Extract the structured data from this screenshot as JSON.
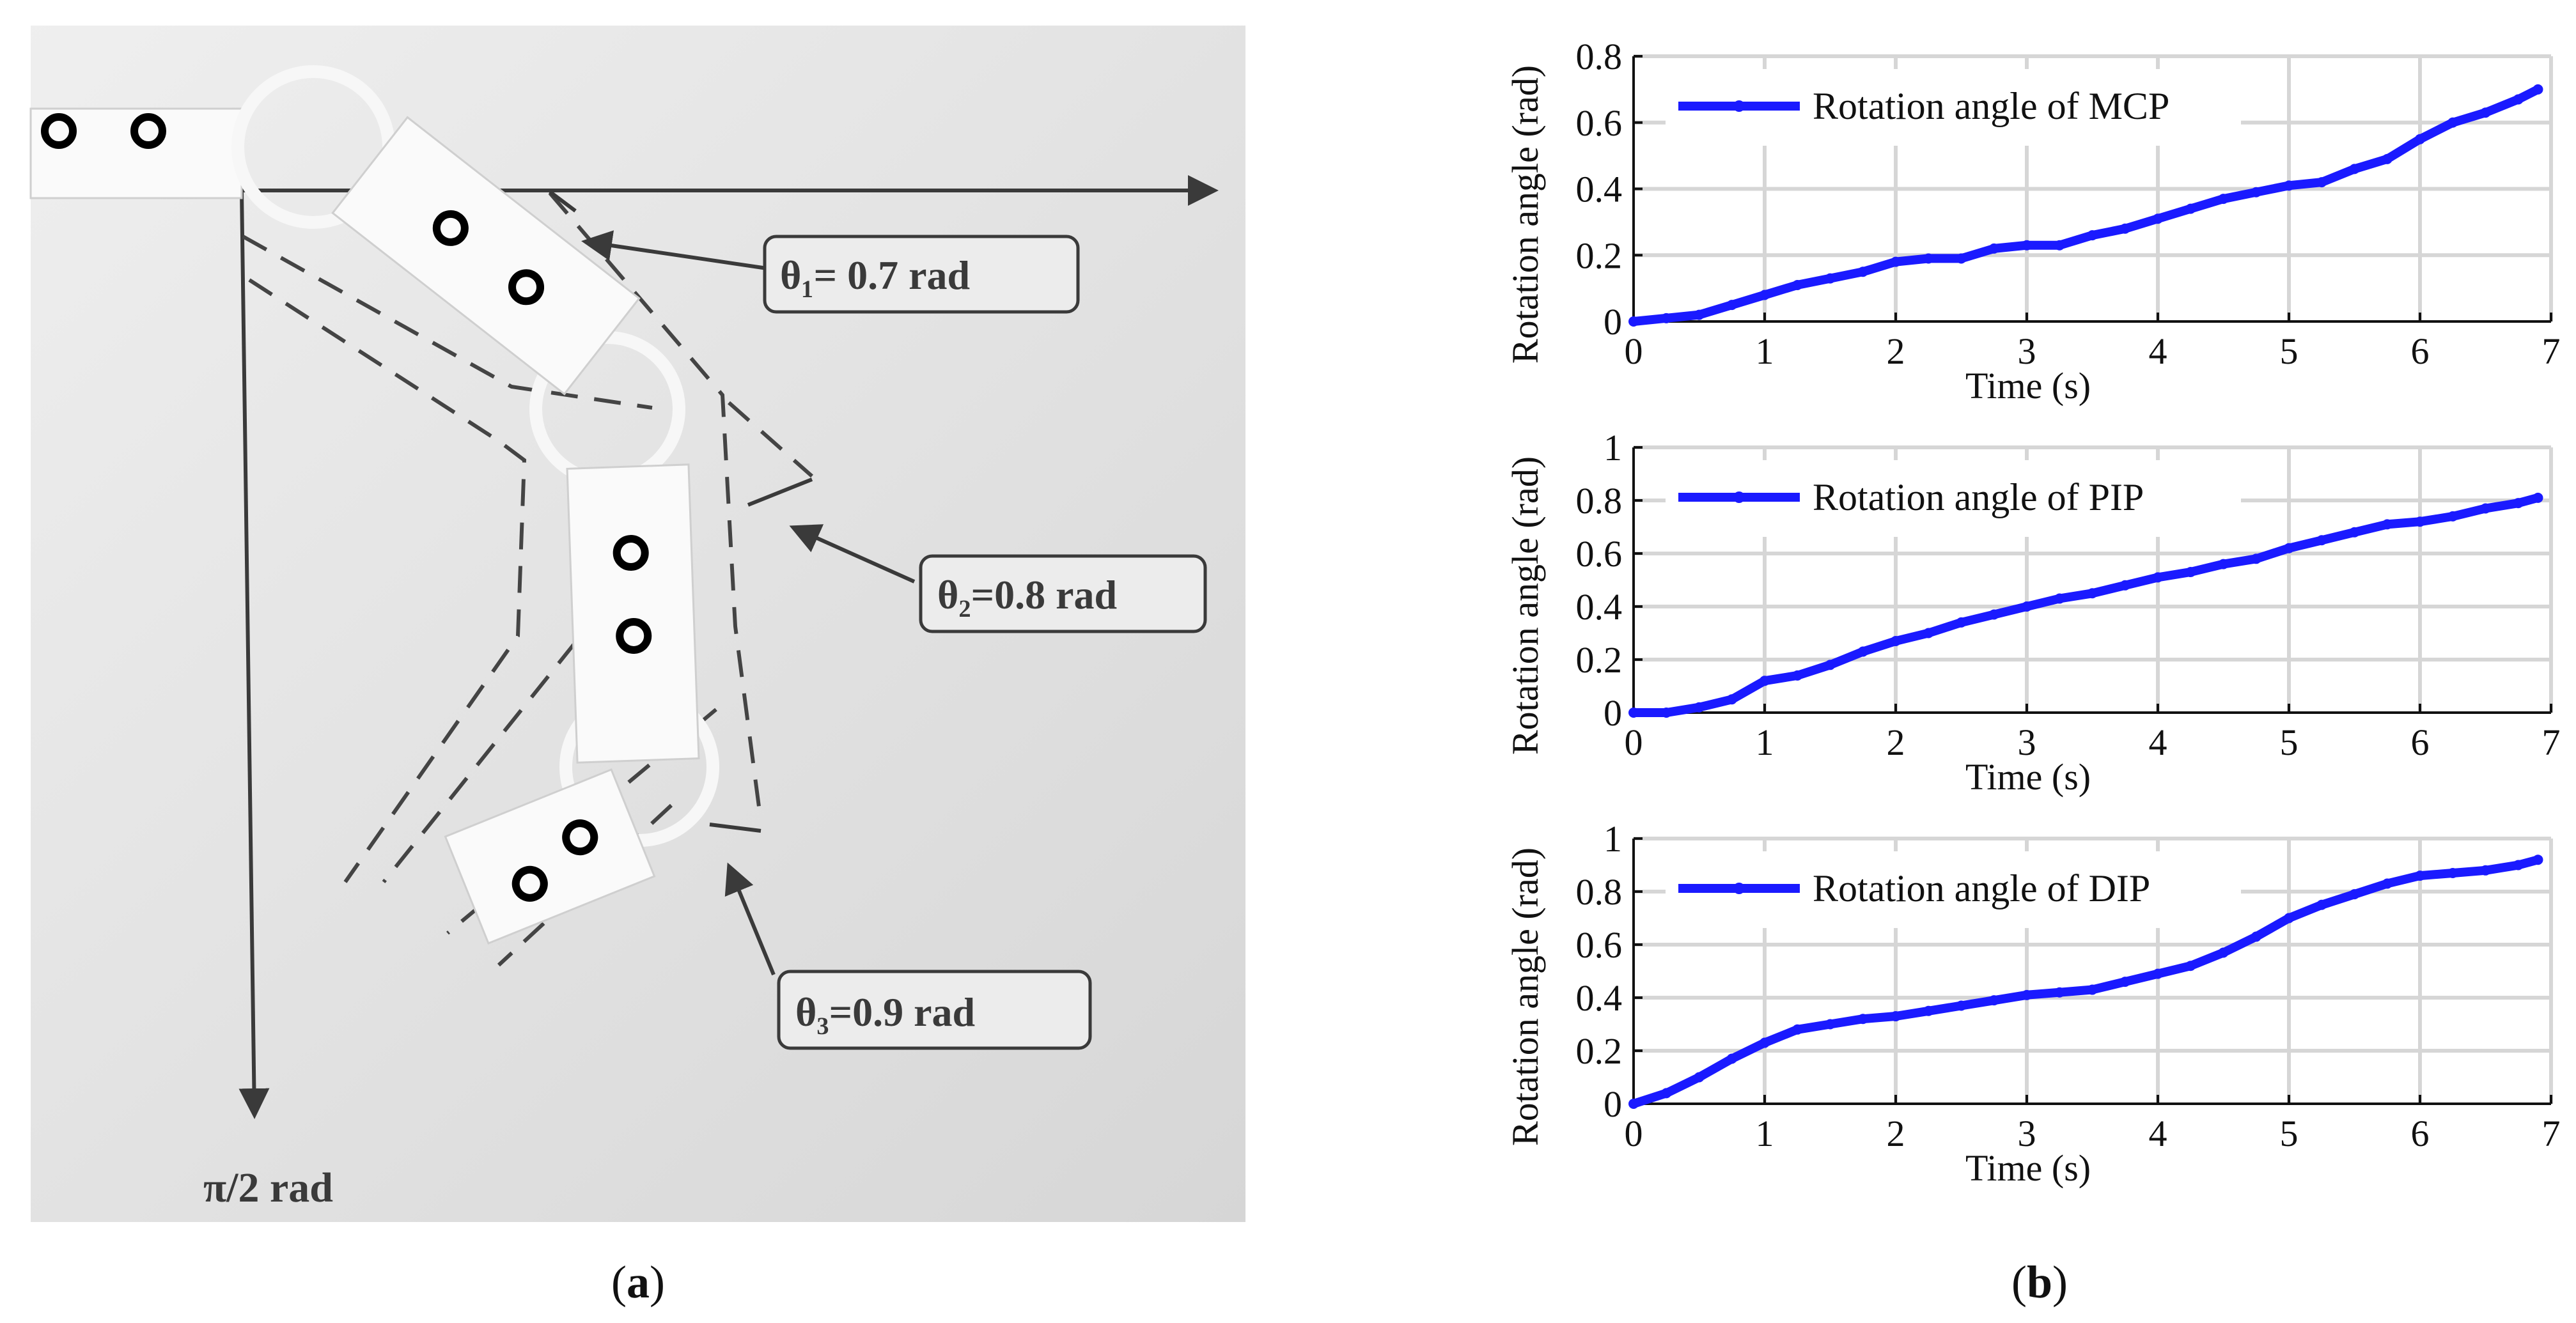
{
  "panel_a": {
    "label_open": "(",
    "label_letter": "a",
    "label_close": ")",
    "annotations": {
      "theta1": "θ₁=  0.7 rad",
      "theta2": "θ₂=0.8 rad",
      "theta3": "θ₃=0.9 rad",
      "axis_end": "π/2 rad"
    }
  },
  "panel_b": {
    "label_open": "(",
    "label_letter": "b",
    "label_close": ")"
  },
  "colors": {
    "series": "#1a1aff",
    "grid": "#d6d6d6",
    "photo_bg": "#e6e6e6"
  },
  "chart_data": [
    {
      "type": "line",
      "title": "",
      "xlabel": "Time (s)",
      "ylabel": "Rotation angle (rad)",
      "xlim": [
        0,
        7
      ],
      "ylim": [
        0,
        0.8
      ],
      "xticks": [
        0,
        1,
        2,
        3,
        4,
        5,
        6,
        7
      ],
      "yticks": [
        0,
        0.2,
        0.4,
        0.6,
        0.8
      ],
      "ytick_labels": [
        "0",
        "0.2",
        "0.4",
        "0.6",
        "0.8"
      ],
      "grid": true,
      "legend_position": "top-left",
      "series": [
        {
          "name": "Rotation angle of MCP",
          "x": [
            0,
            0.25,
            0.5,
            0.75,
            1.0,
            1.25,
            1.5,
            1.75,
            2.0,
            2.25,
            2.5,
            2.75,
            3.0,
            3.25,
            3.5,
            3.75,
            4.0,
            4.25,
            4.5,
            4.75,
            5.0,
            5.25,
            5.5,
            5.75,
            6.0,
            6.25,
            6.5,
            6.75,
            6.9
          ],
          "y": [
            0.0,
            0.01,
            0.02,
            0.05,
            0.08,
            0.11,
            0.13,
            0.15,
            0.18,
            0.19,
            0.19,
            0.22,
            0.23,
            0.23,
            0.26,
            0.28,
            0.31,
            0.34,
            0.37,
            0.39,
            0.41,
            0.42,
            0.46,
            0.49,
            0.55,
            0.6,
            0.63,
            0.67,
            0.7
          ]
        }
      ]
    },
    {
      "type": "line",
      "title": "",
      "xlabel": "Time (s)",
      "ylabel": "Rotation angle (rad)",
      "xlim": [
        0,
        7
      ],
      "ylim": [
        0,
        1
      ],
      "xticks": [
        0,
        1,
        2,
        3,
        4,
        5,
        6,
        7
      ],
      "yticks": [
        0,
        0.2,
        0.4,
        0.6,
        0.8,
        1
      ],
      "ytick_labels": [
        "0",
        "0.2",
        "0.4",
        "0.6",
        "0.8",
        "1"
      ],
      "grid": true,
      "legend_position": "top-left",
      "series": [
        {
          "name": "Rotation angle of PIP",
          "x": [
            0,
            0.25,
            0.5,
            0.75,
            1.0,
            1.25,
            1.5,
            1.75,
            2.0,
            2.25,
            2.5,
            2.75,
            3.0,
            3.25,
            3.5,
            3.75,
            4.0,
            4.25,
            4.5,
            4.75,
            5.0,
            5.25,
            5.5,
            5.75,
            6.0,
            6.25,
            6.5,
            6.75,
            6.9
          ],
          "y": [
            0.0,
            0.0,
            0.02,
            0.05,
            0.12,
            0.14,
            0.18,
            0.23,
            0.27,
            0.3,
            0.34,
            0.37,
            0.4,
            0.43,
            0.45,
            0.48,
            0.51,
            0.53,
            0.56,
            0.58,
            0.62,
            0.65,
            0.68,
            0.71,
            0.72,
            0.74,
            0.77,
            0.79,
            0.81
          ]
        }
      ]
    },
    {
      "type": "line",
      "title": "",
      "xlabel": "Time (s)",
      "ylabel": "Rotation angle (rad)",
      "xlim": [
        0,
        7
      ],
      "ylim": [
        0,
        1
      ],
      "xticks": [
        0,
        1,
        2,
        3,
        4,
        5,
        6,
        7
      ],
      "yticks": [
        0,
        0.2,
        0.4,
        0.6,
        0.8,
        1
      ],
      "ytick_labels": [
        "0",
        "0.2",
        "0.4",
        "0.6",
        "0.8",
        "1"
      ],
      "grid": true,
      "legend_position": "top-left",
      "series": [
        {
          "name": "Rotation angle of DIP",
          "x": [
            0,
            0.25,
            0.5,
            0.75,
            1.0,
            1.25,
            1.5,
            1.75,
            2.0,
            2.25,
            2.5,
            2.75,
            3.0,
            3.25,
            3.5,
            3.75,
            4.0,
            4.25,
            4.5,
            4.75,
            5.0,
            5.25,
            5.5,
            5.75,
            6.0,
            6.25,
            6.5,
            6.75,
            6.9
          ],
          "y": [
            0.0,
            0.04,
            0.1,
            0.17,
            0.23,
            0.28,
            0.3,
            0.32,
            0.33,
            0.35,
            0.37,
            0.39,
            0.41,
            0.42,
            0.43,
            0.46,
            0.49,
            0.52,
            0.57,
            0.63,
            0.7,
            0.75,
            0.79,
            0.83,
            0.86,
            0.87,
            0.88,
            0.9,
            0.92
          ]
        }
      ]
    }
  ]
}
